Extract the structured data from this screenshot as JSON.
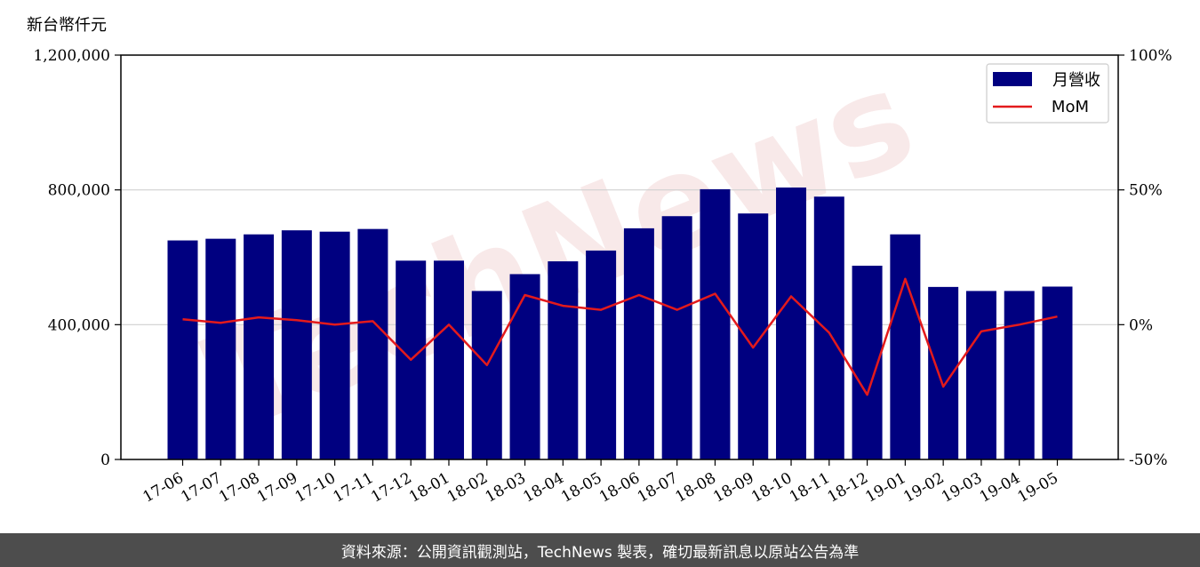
{
  "y_unit_label": "新台幣仟元",
  "footer_text": "資料來源：公開資訊觀測站，TechNews 製表，確切最新訊息以原站公告為準",
  "watermark": "TechNews",
  "colors": {
    "bar": "#000080",
    "line": "#e31a1c",
    "grid": "#d0d0d0",
    "watermark": "#f4d8d8"
  },
  "chart_data": {
    "type": "bar",
    "categories": [
      "17-06",
      "17-07",
      "17-08",
      "17-09",
      "17-10",
      "17-11",
      "17-12",
      "18-01",
      "18-02",
      "18-03",
      "18-04",
      "18-05",
      "18-06",
      "18-07",
      "18-08",
      "18-09",
      "18-10",
      "18-11",
      "18-12",
      "19-01",
      "19-02",
      "19-03",
      "19-04",
      "19-05"
    ],
    "series": [
      {
        "name": "月營收",
        "type": "bar",
        "axis": "left",
        "values": [
          650000,
          655000,
          668000,
          680000,
          676000,
          684000,
          590000,
          590000,
          500000,
          550000,
          588000,
          620000,
          686000,
          722000,
          802000,
          730000,
          807000,
          780000,
          575000,
          668000,
          512000,
          500000,
          500000,
          513000
        ]
      },
      {
        "name": "MoM",
        "type": "line",
        "axis": "right",
        "values": [
          0.02,
          0.007,
          0.027,
          0.017,
          0.0,
          0.013,
          -0.13,
          0.0,
          -0.15,
          0.11,
          0.07,
          0.055,
          0.11,
          0.055,
          0.115,
          -0.085,
          0.105,
          -0.03,
          -0.26,
          0.17,
          -0.23,
          -0.025,
          0.0,
          0.03
        ]
      }
    ],
    "y_left": {
      "ylim": [
        0,
        1200000
      ],
      "ticks": [
        0,
        400000,
        800000,
        1200000
      ],
      "tick_labels": [
        "0",
        "400,000",
        "800,000",
        "1,200,000"
      ]
    },
    "y_right": {
      "ylim": [
        -0.5,
        1.0
      ],
      "ticks": [
        -0.5,
        0,
        0.5,
        1.0
      ],
      "tick_labels": [
        "-50%",
        "0%",
        "50%",
        "100%"
      ]
    },
    "grid": true,
    "legend_position": "top-right"
  }
}
